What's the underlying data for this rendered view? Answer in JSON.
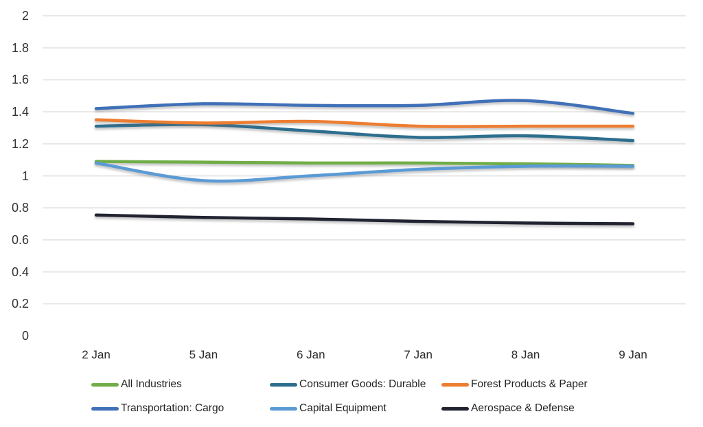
{
  "chart_data": {
    "type": "line",
    "title": "",
    "xlabel": "",
    "ylabel": "",
    "categories": [
      "2 Jan",
      "5 Jan",
      "6 Jan",
      "7 Jan",
      "8 Jan",
      "9 Jan"
    ],
    "series": [
      {
        "name": "All Industries",
        "color": "#70AD47",
        "values": [
          1.09,
          1.085,
          1.08,
          1.08,
          1.075,
          1.065
        ]
      },
      {
        "name": "Consumer Goods: Durable",
        "color": "#2D6E8E",
        "values": [
          1.31,
          1.32,
          1.28,
          1.24,
          1.25,
          1.22
        ]
      },
      {
        "name": "Forest Products & Paper",
        "color": "#ED7D31",
        "values": [
          1.35,
          1.33,
          1.34,
          1.31,
          1.31,
          1.31
        ]
      },
      {
        "name": "Transportation: Cargo",
        "color": "#4070B8",
        "values": [
          1.42,
          1.45,
          1.44,
          1.44,
          1.47,
          1.39
        ]
      },
      {
        "name": "Capital Equipment",
        "color": "#5B9BD5",
        "values": [
          1.08,
          0.97,
          1.0,
          1.04,
          1.06,
          1.06
        ]
      },
      {
        "name": "Aerospace & Defense",
        "color": "#212330",
        "values": [
          0.755,
          0.74,
          0.73,
          0.715,
          0.705,
          0.7
        ]
      }
    ],
    "ylim": [
      0,
      2
    ],
    "yticks": [
      2,
      1.8,
      1.6,
      1.4,
      1.2,
      1,
      0.8,
      0.6,
      0.4,
      0.2,
      0
    ],
    "ytick_labels": [
      "2",
      "1.8",
      "1.6",
      "1.4",
      "1.2",
      "1",
      "0.8",
      "0.6",
      "0.4",
      "0.2",
      "0"
    ],
    "grid": "horizontal",
    "gridline_color": "#E7E7E7",
    "background_color": "#FFFFFF",
    "legend_position": "bottom",
    "smooth_lines": true
  }
}
